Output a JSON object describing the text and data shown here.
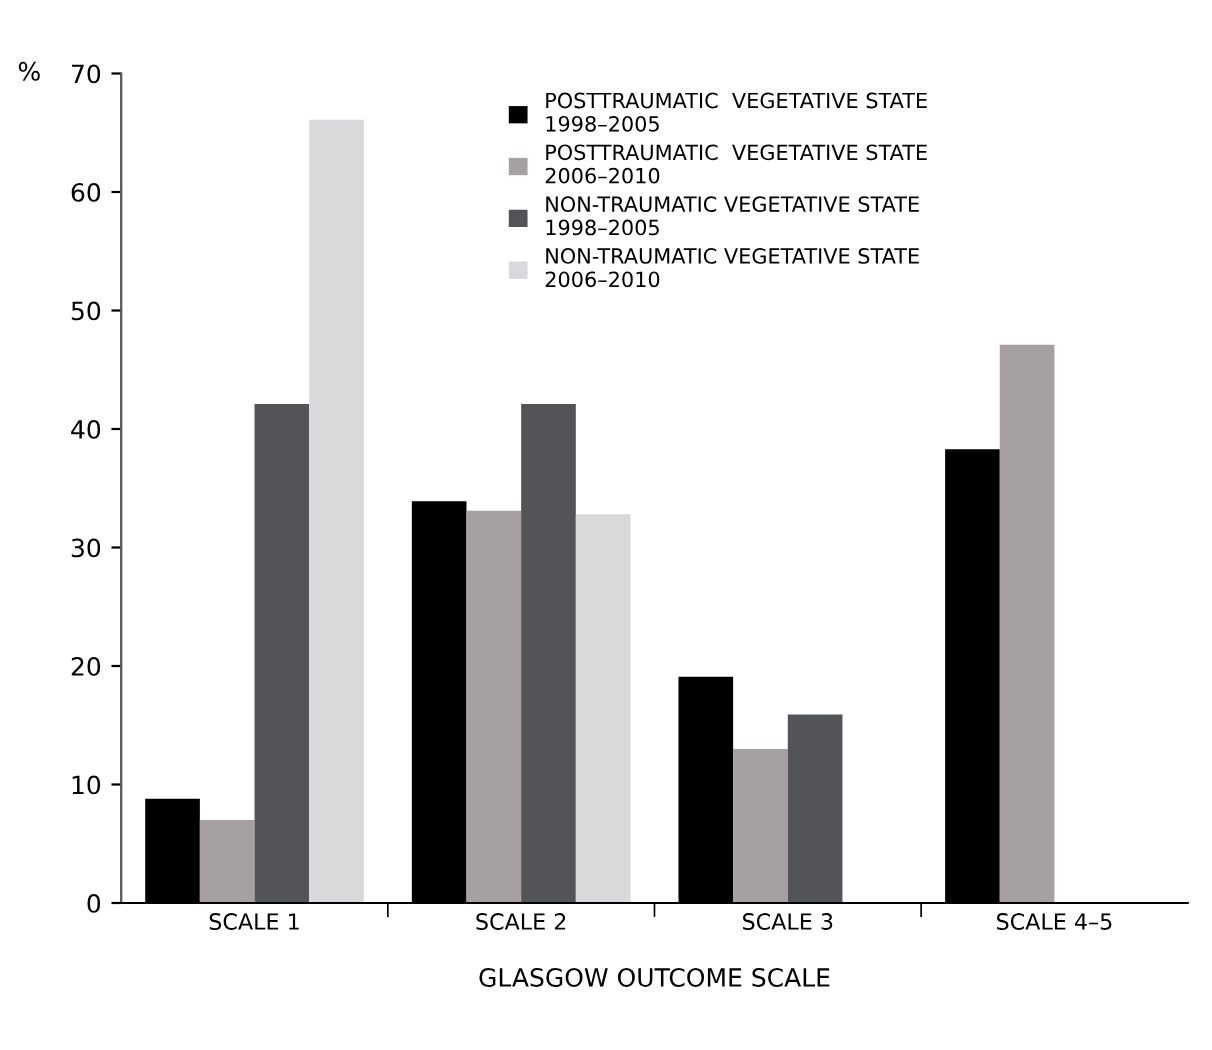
{
  "chart_data": {
    "type": "bar",
    "ylabel": "%",
    "xlabel": "GLASGOW OUTCOME SCALE",
    "categories": [
      "SCALE 1",
      "SCALE 2",
      "SCALE 3",
      "SCALE 4–5"
    ],
    "series": [
      {
        "name": "POSTTRAUMATIC  VEGETATIVE STATE\n1998–2005",
        "color": "#000000",
        "values": [
          8.8,
          33.9,
          19.1,
          38.3
        ]
      },
      {
        "name": "POSTTRAUMATIC  VEGETATIVE STATE\n2006–2010",
        "color": "#a6a0a3",
        "values": [
          7.0,
          33.1,
          13.0,
          47.1
        ]
      },
      {
        "name": "NON-TRAUMATIC VEGETATIVE STATE\n1998–2005",
        "color": "#535458",
        "values": [
          42.1,
          42.1,
          15.9,
          0
        ]
      },
      {
        "name": "NON-TRAUMATIC VEGETATIVE STATE\n2006–2010",
        "color": "#d9d9db",
        "values": [
          66.1,
          32.8,
          0,
          0
        ]
      }
    ],
    "ylim": [
      0,
      70
    ],
    "yticks": [
      0,
      10,
      20,
      30,
      40,
      50,
      60,
      70
    ],
    "grid": false,
    "legend": "top"
  }
}
